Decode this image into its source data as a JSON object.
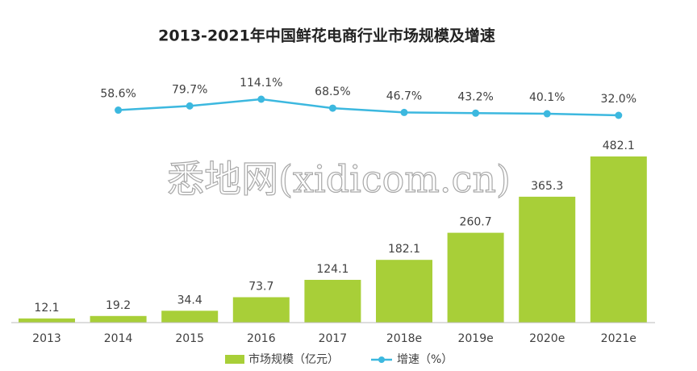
{
  "chart_data": {
    "type": "bar_line",
    "title": "2013-2021年中国鲜花电商行业市场规模及增速",
    "annotation": "悉地网(xidicom.cn)",
    "categories": [
      "2013",
      "2014",
      "2015",
      "2016",
      "2017",
      "2018e",
      "2019e",
      "2020e",
      "2021e"
    ],
    "series": [
      {
        "name": "市场规模（亿元）",
        "color": "#a8cf38",
        "type": "bar",
        "values": [
          12.1,
          19.2,
          34.4,
          73.7,
          124.1,
          182.1,
          260.7,
          365.3,
          482.1
        ]
      },
      {
        "name": "增速（%）",
        "color": "#3cb8df",
        "type": "line",
        "values": [
          null,
          58.6,
          79.7,
          114.1,
          68.5,
          46.7,
          43.2,
          40.1,
          32.0
        ],
        "value_labels": [
          null,
          "58.6%",
          "79.7%",
          "114.1%",
          "68.5%",
          "46.7%",
          "43.2%",
          "40.1%",
          "32.0%"
        ]
      }
    ]
  }
}
